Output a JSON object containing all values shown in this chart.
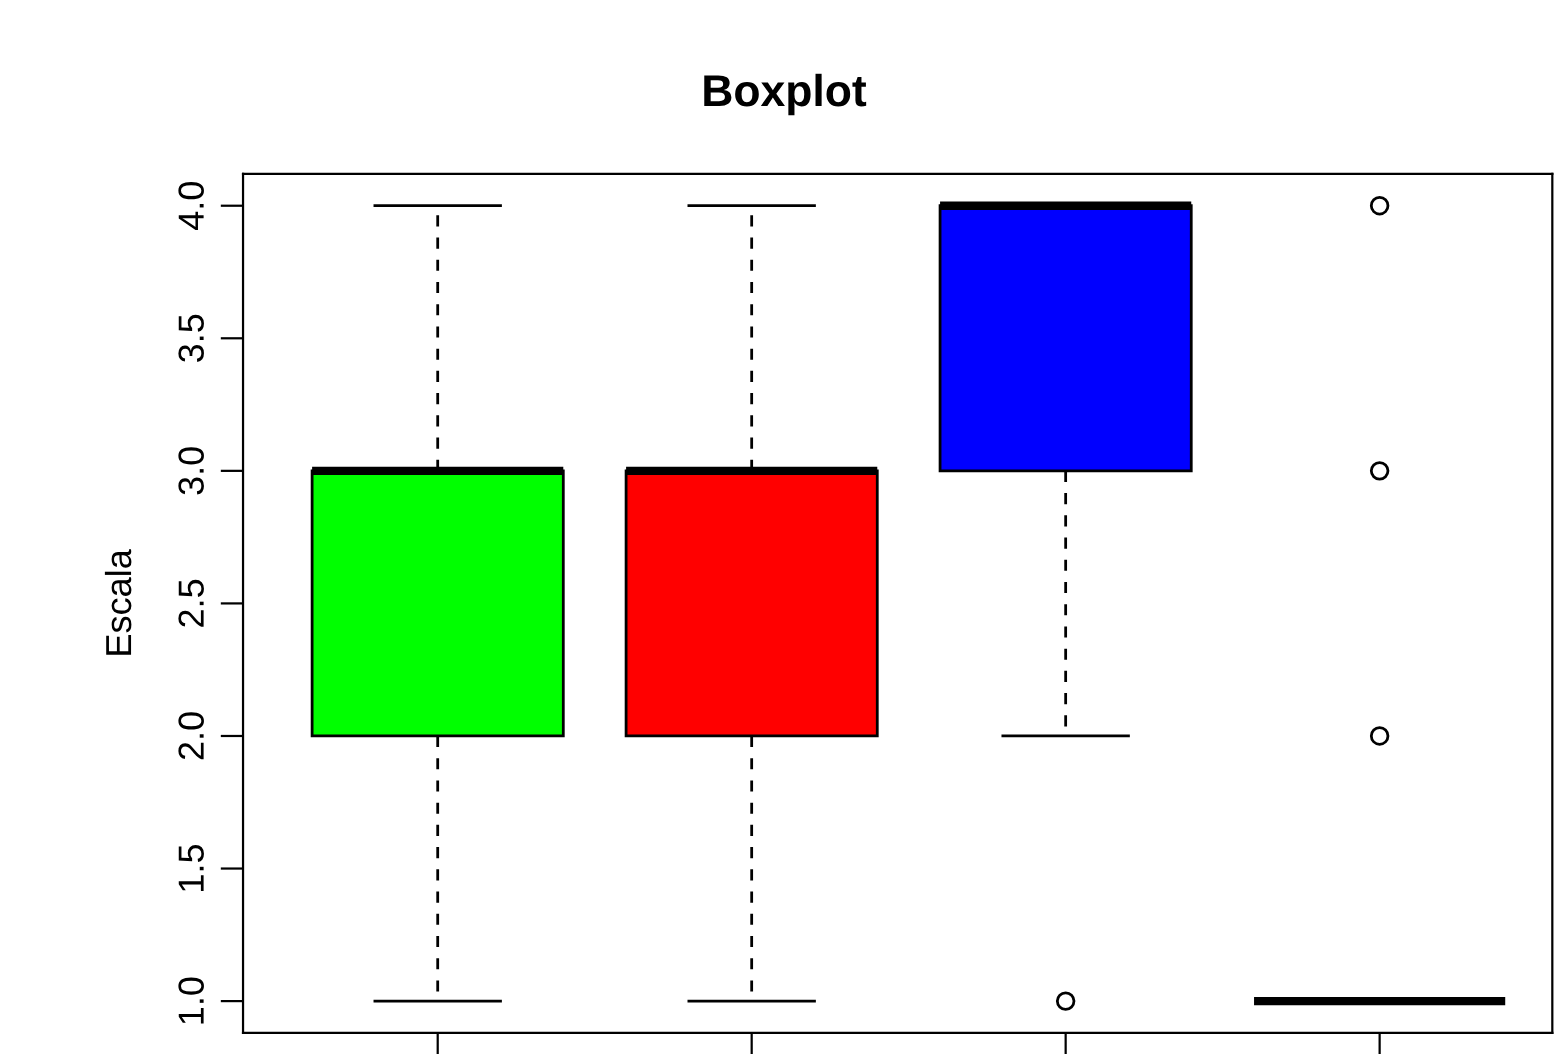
{
  "chart_data": {
    "type": "box",
    "title": "Boxplot",
    "ylabel": "Escala",
    "categories": [
      null,
      null,
      null,
      null
    ],
    "colors": [
      "#00ff00",
      "#ff0000",
      "#0000ff",
      "#ffffff"
    ],
    "boxes": [
      {
        "low": 1,
        "q1": 2,
        "median": 3,
        "q3": 3,
        "high": 4
      },
      {
        "low": 1,
        "q1": 2,
        "median": 3,
        "q3": 3,
        "high": 4
      },
      {
        "low": 2,
        "q1": 3,
        "median": 4,
        "q3": 4,
        "high": 4,
        "outliers": [
          1
        ]
      },
      {
        "low": 1,
        "q1": 1,
        "median": 1,
        "q3": 1,
        "high": 1,
        "outliers": [
          2,
          3,
          4
        ]
      }
    ],
    "ylim": [
      0.88,
      4.12
    ],
    "yticks": [
      {
        "value": 1,
        "label": "1.0"
      },
      {
        "value": 1.5,
        "label": "1.5"
      },
      {
        "value": 2,
        "label": "2.0"
      },
      {
        "value": 2.5,
        "label": "2.5"
      },
      {
        "value": 3,
        "label": "3.0"
      },
      {
        "value": 3.5,
        "label": "3.5"
      },
      {
        "value": 4,
        "label": "4.0"
      }
    ],
    "grid": false,
    "legend": false
  }
}
